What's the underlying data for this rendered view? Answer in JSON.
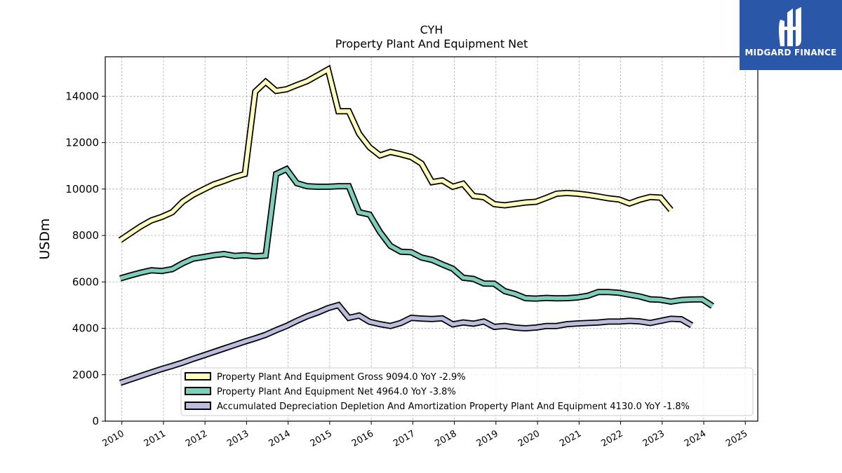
{
  "chart_data": {
    "type": "line",
    "title": "CYH",
    "subtitle": "Property Plant And Equipment Net",
    "ylabel": "USDm",
    "xlabel": "",
    "ylim": [
      0,
      15700
    ],
    "xlim": [
      2009.6,
      2025.3
    ],
    "yticks": [
      0,
      2000,
      4000,
      6000,
      8000,
      10000,
      12000,
      14000
    ],
    "xticks": [
      "2010",
      "2011",
      "2012",
      "2013",
      "2014",
      "2015",
      "2016",
      "2017",
      "2018",
      "2019",
      "2020",
      "2021",
      "2022",
      "2023",
      "2024",
      "2025"
    ],
    "grid": true,
    "legend_position": "lower-right",
    "x": [
      2009.96,
      2010.21,
      2010.46,
      2010.71,
      2010.96,
      2011.21,
      2011.46,
      2011.71,
      2011.96,
      2012.21,
      2012.46,
      2012.71,
      2012.96,
      2013.21,
      2013.46,
      2013.71,
      2013.96,
      2014.21,
      2014.46,
      2014.71,
      2014.96,
      2015.21,
      2015.46,
      2015.71,
      2015.96,
      2016.21,
      2016.46,
      2016.71,
      2016.96,
      2017.21,
      2017.46,
      2017.71,
      2017.96,
      2018.21,
      2018.46,
      2018.71,
      2018.96,
      2019.21,
      2019.46,
      2019.71,
      2019.96,
      2020.21,
      2020.46,
      2020.71,
      2020.96,
      2021.21,
      2021.46,
      2021.71,
      2021.96,
      2022.21,
      2022.46,
      2022.71,
      2022.96,
      2023.21,
      2023.46,
      2023.71,
      2023.96,
      2024.21,
      2024.46,
      2024.71
    ],
    "series": [
      {
        "name": "Property Plant And Equipment Gross",
        "legend": "Property Plant And Equipment Gross  9094.0 YoY -2.9%",
        "color": "#ffffbf",
        "values": [
          7800,
          8100,
          8400,
          8650,
          8800,
          9000,
          9450,
          9750,
          9980,
          10200,
          10350,
          10520,
          10650,
          14200,
          14620,
          14230,
          14300,
          14480,
          14650,
          14900,
          15150,
          13350,
          13350,
          12380,
          11800,
          11450,
          11600,
          11500,
          11380,
          11100,
          10300,
          10370,
          10100,
          10230,
          9700,
          9650,
          9350,
          9300,
          9360,
          9420,
          9450,
          9620,
          9800,
          9830,
          9800,
          9750,
          9680,
          9600,
          9550,
          9380,
          9540,
          9660,
          9630,
          9100,
          0,
          0,
          0,
          0,
          0,
          0
        ]
      },
      {
        "name": "Property Plant And Equipment Net",
        "legend": "Property Plant And Equipment Net  4964.0 YoY -3.8%",
        "color": "#7fcdbb",
        "values": [
          6150,
          6280,
          6400,
          6500,
          6470,
          6550,
          6800,
          7000,
          7070,
          7150,
          7200,
          7120,
          7150,
          7100,
          7130,
          10650,
          10860,
          10250,
          10120,
          10100,
          10100,
          10120,
          10120,
          9000,
          8900,
          8150,
          7550,
          7300,
          7280,
          7050,
          6950,
          6750,
          6570,
          6180,
          6130,
          5930,
          5920,
          5600,
          5480,
          5300,
          5280,
          5310,
          5290,
          5300,
          5330,
          5400,
          5560,
          5560,
          5530,
          5450,
          5370,
          5250,
          5230,
          5150,
          5220,
          5240,
          5250,
          4960,
          0,
          0
        ]
      },
      {
        "name": "Accumulated Depreciation Depletion And Amortization Property Plant And Equipment",
        "legend": "Accumulated Depreciation Depletion And Amortization Property Plant And Equipment  4130.0 YoY -1.8%",
        "color": "#bcbddc",
        "values": [
          1650,
          1800,
          1950,
          2100,
          2250,
          2380,
          2520,
          2680,
          2830,
          2980,
          3130,
          3280,
          3430,
          3570,
          3720,
          3920,
          4100,
          4320,
          4520,
          4680,
          4870,
          5000,
          4450,
          4550,
          4280,
          4180,
          4100,
          4230,
          4450,
          4420,
          4400,
          4430,
          4170,
          4250,
          4200,
          4290,
          4060,
          4100,
          4030,
          4000,
          4030,
          4100,
          4100,
          4180,
          4210,
          4230,
          4250,
          4290,
          4290,
          4320,
          4300,
          4230,
          4320,
          4410,
          4390,
          4130,
          0,
          0,
          0,
          0
        ]
      }
    ]
  },
  "logo": {
    "text": "MIDGARD FINANCE",
    "background": "#2b57a8"
  }
}
